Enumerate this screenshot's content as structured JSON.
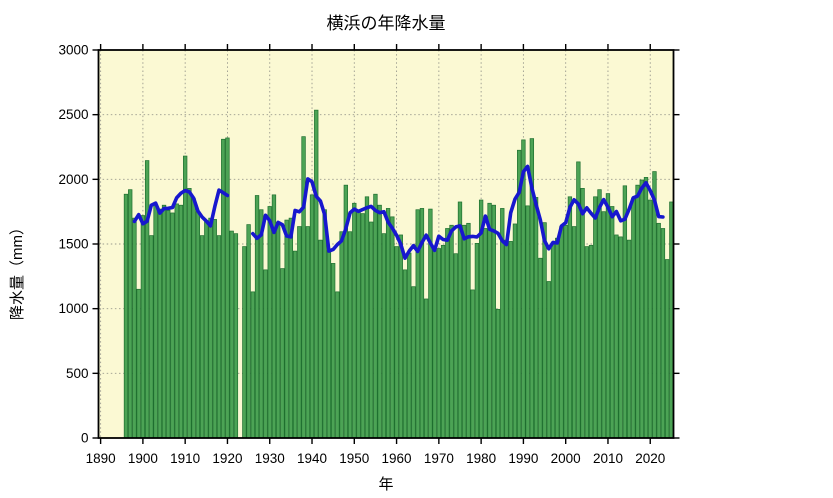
{
  "chart_data": {
    "type": "bar",
    "title": "横浜の年降水量",
    "xlabel": "年",
    "ylabel": "降水量（mm）",
    "ylim": [
      0,
      3000
    ],
    "y_ticks": [
      0,
      500,
      1000,
      1500,
      2000,
      2500,
      3000
    ],
    "x_domain": [
      1889.5,
      2025.5
    ],
    "x_ticks": [
      1890,
      1900,
      1910,
      1920,
      1930,
      1940,
      1950,
      1960,
      1970,
      1980,
      1990,
      2000,
      2010,
      2020
    ],
    "grid": "dotted",
    "legend": "none",
    "start_year": 1896,
    "missing_year": 1923,
    "moving_average_window": 5,
    "values": [
      1885,
      1920,
      1700,
      1150,
      1720,
      2145,
      1565,
      1800,
      1770,
      1800,
      1760,
      1740,
      1810,
      1800,
      2180,
      1930,
      1850,
      1750,
      1565,
      1680,
      1700,
      1690,
      1565,
      2310,
      2320,
      1600,
      1580,
      null,
      1480,
      1650,
      1130,
      1875,
      1765,
      1300,
      1790,
      1880,
      1670,
      1310,
      1685,
      1700,
      1445,
      1635,
      2330,
      1635,
      1880,
      2535,
      1530,
      1765,
      1450,
      1350,
      1130,
      1595,
      1955,
      1595,
      1815,
      1750,
      1735,
      1865,
      1670,
      1885,
      1800,
      1580,
      1775,
      1710,
      1480,
      1570,
      1300,
      1430,
      1170,
      1765,
      1775,
      1075,
      1770,
      1455,
      1465,
      1490,
      1620,
      1645,
      1425,
      1825,
      1645,
      1660,
      1145,
      1505,
      1840,
      1620,
      1815,
      1800,
      995,
      1775,
      1530,
      1520,
      1655,
      2225,
      2305,
      1795,
      2315,
      1860,
      1390,
      1665,
      1210,
      1505,
      1545,
      1635,
      1645,
      1865,
      1635,
      2135,
      1930,
      1480,
      1490,
      1865,
      1920,
      1750,
      1890,
      1790,
      1570,
      1555,
      1950,
      1530,
      1855,
      1955,
      1995,
      2015,
      1840,
      2060,
      1660,
      1620,
      1380,
      1825
    ],
    "colors": {
      "plot_background": "#FBF9D3",
      "bar_fill": "#4CA355",
      "bar_edge": "#1E6F2F",
      "moving_average_line": "#1717CE",
      "gridline": "#9a9a8e",
      "axis": "#000000"
    }
  }
}
